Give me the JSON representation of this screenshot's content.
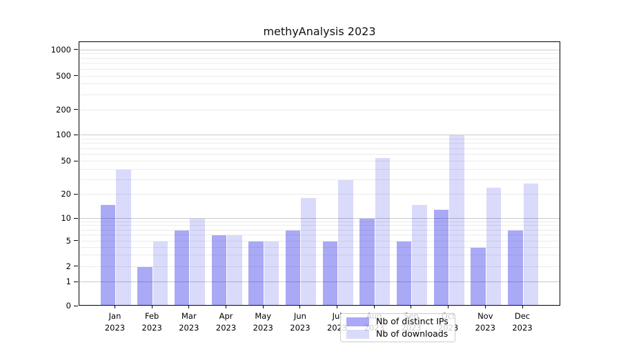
{
  "chart_data": {
    "type": "bar",
    "title": "methyAnalysis 2023",
    "categories": [
      "Jan",
      "Feb",
      "Mar",
      "Apr",
      "May",
      "Jun",
      "Jul",
      "Aug",
      "Sep",
      "Oct",
      "Nov",
      "Dec"
    ],
    "year_label": "2023",
    "series": [
      {
        "name": "Nb of distinct IPs",
        "color": "rgba(10,10,230,0.35)",
        "values": [
          15,
          2,
          7,
          6,
          5,
          7,
          5,
          10,
          5,
          13,
          4,
          7
        ]
      },
      {
        "name": "Nb of downloads",
        "color": "rgba(10,10,230,0.15)",
        "values": [
          40,
          5,
          10,
          6,
          5,
          18,
          30,
          55,
          15,
          100,
          24,
          27
        ]
      }
    ],
    "y_ticks": [
      0,
      1,
      2,
      5,
      10,
      20,
      50,
      100,
      200,
      500,
      1000
    ],
    "major_gridline_values": [
      1,
      10,
      100,
      1000
    ],
    "minor_gridline_values": [
      2,
      3,
      4,
      5,
      6,
      7,
      8,
      9,
      20,
      30,
      40,
      50,
      60,
      70,
      80,
      90,
      200,
      300,
      400,
      500,
      600,
      700,
      800,
      900
    ],
    "ylim": [
      0,
      1000
    ],
    "scale": "log-like with zero baseline",
    "grid": true,
    "legend_position": "lower center"
  }
}
